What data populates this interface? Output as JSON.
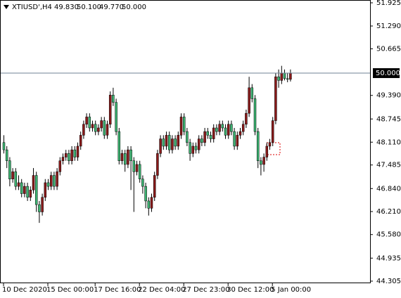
{
  "chart_data": {
    "type": "candlestick",
    "header": {
      "symbol": "XTIUSD',H4",
      "open": "49.830",
      "high": "50.100",
      "low": "49.770",
      "close": "50.000"
    },
    "up_color": "#8b1a1a",
    "down_color": "#3cb371",
    "wick_color": "#000000",
    "current_price": {
      "value": 50,
      "label": "50.000"
    },
    "price_line_color": "#6f8296",
    "ylim": [
      44.305,
      51.925
    ],
    "yticks": [
      51.925,
      {
        "value": 51.29,
        "label": "51.290"
      },
      50.665,
      {
        "value": 49.39,
        "label": "49.390"
      },
      48.745,
      {
        "value": 48.11,
        "label": "48.110"
      },
      47.485,
      {
        "value": 46.84,
        "label": "46.840"
      },
      {
        "value": 46.21,
        "label": "46.210"
      },
      {
        "value": 45.58,
        "label": "45.580"
      },
      44.935,
      44.305
    ],
    "categories": [
      "10 Dec 2020",
      null,
      null,
      null,
      null,
      null,
      null,
      null,
      null,
      null,
      null,
      null,
      null,
      null,
      null,
      "15 Dec 00:00",
      null,
      null,
      null,
      null,
      null,
      null,
      null,
      null,
      null,
      null,
      null,
      null,
      null,
      null,
      null,
      "17 Dec 16:00",
      null,
      null,
      null,
      null,
      null,
      null,
      null,
      null,
      null,
      null,
      null,
      null,
      null,
      null,
      "22 Dec 04:00",
      null,
      null,
      null,
      null,
      null,
      null,
      null,
      null,
      null,
      null,
      null,
      null,
      null,
      null,
      "27 Dec 23:00",
      null,
      null,
      null,
      null,
      null,
      null,
      null,
      null,
      null,
      null,
      null,
      null,
      null,
      null,
      "30 Dec 12:00",
      null,
      null,
      null,
      null,
      null,
      null,
      null,
      null,
      null,
      null,
      null,
      null,
      null,
      null,
      "5 Jan 00:00",
      null,
      null,
      null,
      null,
      null,
      null
    ],
    "ohlc": [
      [
        48.1,
        48.3,
        47.8,
        47.9
      ],
      [
        47.9,
        48.0,
        47.4,
        47.6
      ],
      [
        47.6,
        47.7,
        46.9,
        47.1
      ],
      [
        47.1,
        47.4,
        47.0,
        47.3
      ],
      [
        47.3,
        47.4,
        46.8,
        46.9
      ],
      [
        46.9,
        47.2,
        46.8,
        47.0
      ],
      [
        47.0,
        47.1,
        46.6,
        46.7
      ],
      [
        46.7,
        47.0,
        46.6,
        46.9
      ],
      [
        46.9,
        47.0,
        46.5,
        46.6
      ],
      [
        46.6,
        46.9,
        46.5,
        46.8
      ],
      [
        46.8,
        47.4,
        46.7,
        47.2
      ],
      [
        47.2,
        47.3,
        46.2,
        46.4
      ],
      [
        46.4,
        46.5,
        45.9,
        46.2
      ],
      [
        46.2,
        46.7,
        46.1,
        46.6
      ],
      [
        46.6,
        47.1,
        46.5,
        47.0
      ],
      [
        47.0,
        47.1,
        46.8,
        46.9
      ],
      [
        46.9,
        47.3,
        46.8,
        47.2
      ],
      [
        47.2,
        47.3,
        46.8,
        46.9
      ],
      [
        46.9,
        47.4,
        46.8,
        47.3
      ],
      [
        47.3,
        47.7,
        47.2,
        47.6
      ],
      [
        47.6,
        47.8,
        47.5,
        47.7
      ],
      [
        47.7,
        47.9,
        47.6,
        47.8
      ],
      [
        47.8,
        47.9,
        47.5,
        47.6
      ],
      [
        47.6,
        48.0,
        47.5,
        47.9
      ],
      [
        47.9,
        48.0,
        47.6,
        47.7
      ],
      [
        47.7,
        48.1,
        47.6,
        48.0
      ],
      [
        48.0,
        48.4,
        47.9,
        48.3
      ],
      [
        48.3,
        48.7,
        48.2,
        48.6
      ],
      [
        48.6,
        48.9,
        48.5,
        48.8
      ],
      [
        48.8,
        48.9,
        48.4,
        48.5
      ],
      [
        48.5,
        48.7,
        48.4,
        48.6
      ],
      [
        48.6,
        48.7,
        48.3,
        48.4
      ],
      [
        48.4,
        48.6,
        48.3,
        48.5
      ],
      [
        48.5,
        48.8,
        48.4,
        48.7
      ],
      [
        48.7,
        48.8,
        48.2,
        48.3
      ],
      [
        48.3,
        48.7,
        48.2,
        48.6
      ],
      [
        48.6,
        49.5,
        48.5,
        49.4
      ],
      [
        49.4,
        49.6,
        49.1,
        49.2
      ],
      [
        49.2,
        49.3,
        48.3,
        48.4
      ],
      [
        48.4,
        48.5,
        47.5,
        47.6
      ],
      [
        47.6,
        47.9,
        47.5,
        47.8
      ],
      [
        47.8,
        47.9,
        47.3,
        47.5
      ],
      [
        47.5,
        48.0,
        47.4,
        47.9
      ],
      [
        47.9,
        48.0,
        46.8,
        47.6
      ],
      [
        47.6,
        47.7,
        46.2,
        47.3
      ],
      [
        47.3,
        47.6,
        47.2,
        47.5
      ],
      [
        47.5,
        47.6,
        47.0,
        47.1
      ],
      [
        47.1,
        47.2,
        46.7,
        46.9
      ],
      [
        46.9,
        47.0,
        46.3,
        46.5
      ],
      [
        46.5,
        46.6,
        46.1,
        46.3
      ],
      [
        46.3,
        46.7,
        46.2,
        46.6
      ],
      [
        46.6,
        47.3,
        46.5,
        47.2
      ],
      [
        47.2,
        47.9,
        47.1,
        47.8
      ],
      [
        47.8,
        48.3,
        47.7,
        48.2
      ],
      [
        48.2,
        48.3,
        47.9,
        48.0
      ],
      [
        48.0,
        48.4,
        47.9,
        48.3
      ],
      [
        48.3,
        48.4,
        47.8,
        47.9
      ],
      [
        47.9,
        48.3,
        47.8,
        48.2
      ],
      [
        48.2,
        48.3,
        47.9,
        48.0
      ],
      [
        48.0,
        48.4,
        47.9,
        48.3
      ],
      [
        48.3,
        48.9,
        48.2,
        48.8
      ],
      [
        48.8,
        48.9,
        48.3,
        48.4
      ],
      [
        48.4,
        48.5,
        48.0,
        48.1
      ],
      [
        48.1,
        48.2,
        47.6,
        47.8
      ],
      [
        47.8,
        48.1,
        47.7,
        48.0
      ],
      [
        48.0,
        48.1,
        47.8,
        47.9
      ],
      [
        47.9,
        48.3,
        47.8,
        48.2
      ],
      [
        48.2,
        48.3,
        48.0,
        48.1
      ],
      [
        48.1,
        48.5,
        48.0,
        48.4
      ],
      [
        48.4,
        48.5,
        48.2,
        48.3
      ],
      [
        48.3,
        48.4,
        48.1,
        48.2
      ],
      [
        48.2,
        48.6,
        48.1,
        48.5
      ],
      [
        48.5,
        48.6,
        48.3,
        48.4
      ],
      [
        48.4,
        48.7,
        48.3,
        48.6
      ],
      [
        48.6,
        48.7,
        48.4,
        48.5
      ],
      [
        48.5,
        48.6,
        48.2,
        48.3
      ],
      [
        48.3,
        48.7,
        48.2,
        48.6
      ],
      [
        48.6,
        48.7,
        48.3,
        48.4
      ],
      [
        48.4,
        48.5,
        47.9,
        48.0
      ],
      [
        48.0,
        48.4,
        47.9,
        48.3
      ],
      [
        48.3,
        48.5,
        48.2,
        48.4
      ],
      [
        48.4,
        48.7,
        48.3,
        48.6
      ],
      [
        48.6,
        49.0,
        48.5,
        48.9
      ],
      [
        48.9,
        49.9,
        48.8,
        49.6
      ],
      [
        49.6,
        49.7,
        49.2,
        49.3
      ],
      [
        49.3,
        49.4,
        48.3,
        48.4
      ],
      [
        48.4,
        48.5,
        47.4,
        47.6
      ],
      [
        47.6,
        47.7,
        47.2,
        47.5
      ],
      [
        47.5,
        47.8,
        47.3,
        47.7
      ],
      [
        47.7,
        48.1,
        47.6,
        48.0
      ],
      [
        48.0,
        48.2,
        47.9,
        48.1
      ],
      [
        48.1,
        48.8,
        48.0,
        48.7
      ],
      [
        48.7,
        50.0,
        48.6,
        49.9
      ],
      [
        49.9,
        50.1,
        49.6,
        49.8
      ],
      [
        49.8,
        50.2,
        49.7,
        50.0
      ],
      [
        50.0,
        50.1,
        49.8,
        49.85
      ],
      [
        49.85,
        50.0,
        49.75,
        49.83
      ],
      [
        49.83,
        50.1,
        49.77,
        50.0
      ]
    ]
  }
}
